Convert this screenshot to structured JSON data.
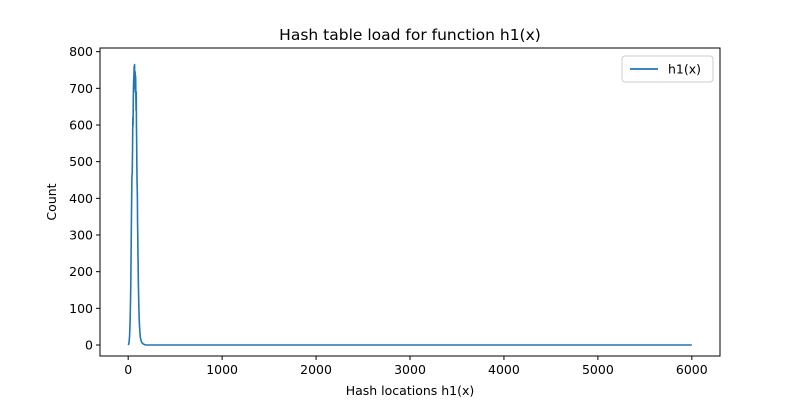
{
  "chart_data": {
    "type": "line",
    "title": "Hash table load for function h1(x)",
    "xlabel": "Hash locations h1(x)",
    "ylabel": "Count",
    "xlim": [
      -300,
      6300
    ],
    "ylim": [
      -30,
      810
    ],
    "xticks": [
      0,
      1000,
      2000,
      3000,
      4000,
      5000,
      6000
    ],
    "yticks": [
      0,
      100,
      200,
      300,
      400,
      500,
      600,
      700,
      800
    ],
    "grid": false,
    "legend_position": "upper right",
    "series": [
      {
        "name": "h1(x)",
        "color": "#1f77b4",
        "x": [
          0,
          5,
          10,
          15,
          20,
          25,
          28,
          31,
          34,
          37,
          40,
          43,
          46,
          48,
          50,
          52,
          54,
          56,
          58,
          60,
          62,
          64,
          66,
          68,
          70,
          72,
          74,
          76,
          78,
          80,
          82,
          84,
          86,
          88,
          90,
          92,
          94,
          96,
          98,
          100,
          102,
          104,
          106,
          108,
          110,
          113,
          116,
          120,
          125,
          130,
          140,
          150,
          160,
          175,
          190,
          210,
          240,
          300,
          500,
          1000,
          2000,
          3000,
          4000,
          5000,
          6000
        ],
        "y": [
          0,
          2,
          8,
          25,
          60,
          120,
          175,
          250,
          330,
          400,
          460,
          470,
          520,
          580,
          620,
          600,
          660,
          700,
          720,
          730,
          745,
          760,
          740,
          765,
          700,
          720,
          745,
          690,
          735,
          720,
          680,
          640,
          690,
          600,
          560,
          500,
          450,
          430,
          400,
          330,
          300,
          250,
          220,
          175,
          150,
          110,
          80,
          55,
          35,
          20,
          10,
          5,
          3,
          1,
          0,
          0,
          0,
          0,
          0,
          0,
          0,
          0,
          0,
          0,
          0
        ]
      }
    ]
  }
}
